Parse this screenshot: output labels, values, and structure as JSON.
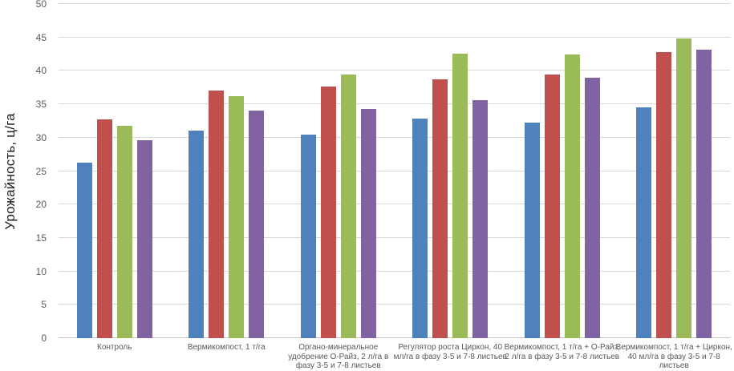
{
  "chart_data": {
    "type": "bar",
    "title": "",
    "xlabel": "",
    "ylabel": "Урожайность, ц/га",
    "ylim": [
      0,
      50
    ],
    "yticks": [
      0,
      5,
      10,
      15,
      20,
      25,
      30,
      35,
      40,
      45,
      50
    ],
    "grid": true,
    "legend_position": "none",
    "categories": [
      "Контроль",
      "Вермикомпост, 1 т/га",
      "Органо-минеральное\nудобрение О-Райз, 2 л/га в\nфазу 3-5 и 7-8 листьев",
      "Регулятор роста Циркон, 40\nмл/га в фазу 3-5 и 7-8 листьев",
      "Вермикомпост, 1 т/га + О-Райз,\n2 л/га в фазу 3-5 и 7-8 листьев",
      "Вермикомпост, 1 т/га + Циркон,\n40 мл/га в фазу 3-5 и 7-8\nлистьев"
    ],
    "series": [
      {
        "name": "blue",
        "color": "#4F81BD",
        "values": [
          26.3,
          31.1,
          30.5,
          32.8,
          32.3,
          34.5
        ]
      },
      {
        "name": "red",
        "color": "#C0504D",
        "values": [
          32.7,
          37.0,
          37.6,
          38.7,
          39.5,
          42.8
        ]
      },
      {
        "name": "green",
        "color": "#9BBB59",
        "values": [
          31.8,
          36.2,
          39.5,
          42.6,
          42.4,
          44.9
        ]
      },
      {
        "name": "purple",
        "color": "#8064A2",
        "values": [
          29.6,
          34.1,
          34.3,
          35.6,
          39.0,
          43.2
        ]
      }
    ],
    "colors": {
      "gridline": "#d9d9d9",
      "axis_line": "#c6c6c6",
      "tick_label": "#595959",
      "axis_title": "#1f1f1f"
    }
  }
}
